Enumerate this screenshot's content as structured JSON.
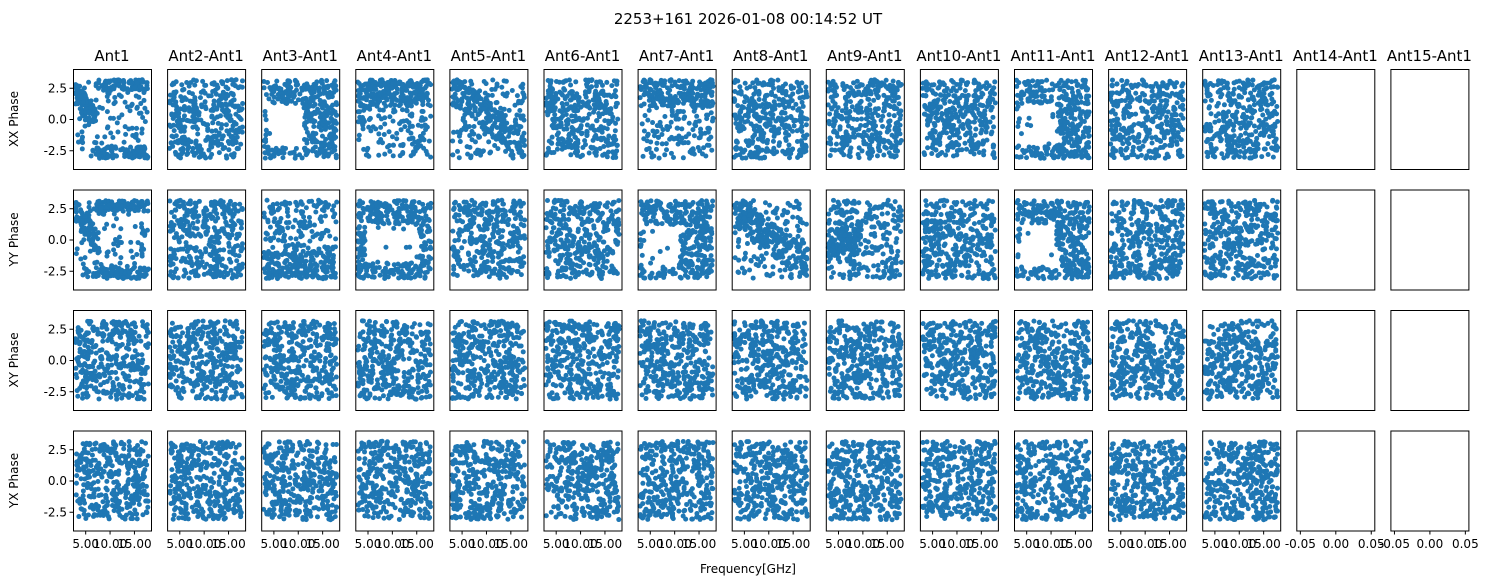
{
  "chart_data": {
    "type": "scatter",
    "title": "2253+161 2026-01-08 00:14:52 UT",
    "xlabel": "Frequency[GHz]",
    "columns": [
      "Ant1",
      "Ant2-Ant1",
      "Ant3-Ant1",
      "Ant4-Ant1",
      "Ant5-Ant1",
      "Ant6-Ant1",
      "Ant7-Ant1",
      "Ant8-Ant1",
      "Ant9-Ant1",
      "Ant10-Ant1",
      "Ant11-Ant1",
      "Ant12-Ant1",
      "Ant13-Ant1",
      "Ant14-Ant1",
      "Ant15-Ant1"
    ],
    "rows": [
      "XX Phase",
      "YY Phase",
      "XY Phase",
      "YX Phase"
    ],
    "xlim": [
      2.5,
      18.5
    ],
    "ylim": [
      -4.0,
      4.0
    ],
    "xticks": [
      5.0,
      10.0,
      15.0
    ],
    "xtick_labels": [
      "5.00",
      "10.00",
      "15.00"
    ],
    "yticks": [
      2.5,
      0.0,
      -2.5
    ],
    "ytick_labels": [
      "2.5",
      "0.0",
      "-2.5"
    ],
    "empty_xlim": [
      -0.055,
      0.055
    ],
    "empty_xticks": [
      -0.05,
      0.0,
      0.05
    ],
    "empty_xtick_labels": [
      "-0.05",
      "0.00",
      "0.05"
    ],
    "points_per_panel": 350,
    "empty_columns": [
      13,
      14
    ],
    "series_color": "#1f77b4",
    "grid": false,
    "legend": "none",
    "panel_structure": {
      "0,0": "wrap",
      "0,2": "holeL",
      "0,3": "top",
      "0,4": "diagBand",
      "0,6": "top",
      "0,10": "holeL",
      "1,0": "wrap",
      "1,2": "bottom",
      "1,3": "hole",
      "1,6": "holeL",
      "1,7": "diagBand",
      "1,8": "leftMid",
      "1,10": "holeL"
    }
  }
}
